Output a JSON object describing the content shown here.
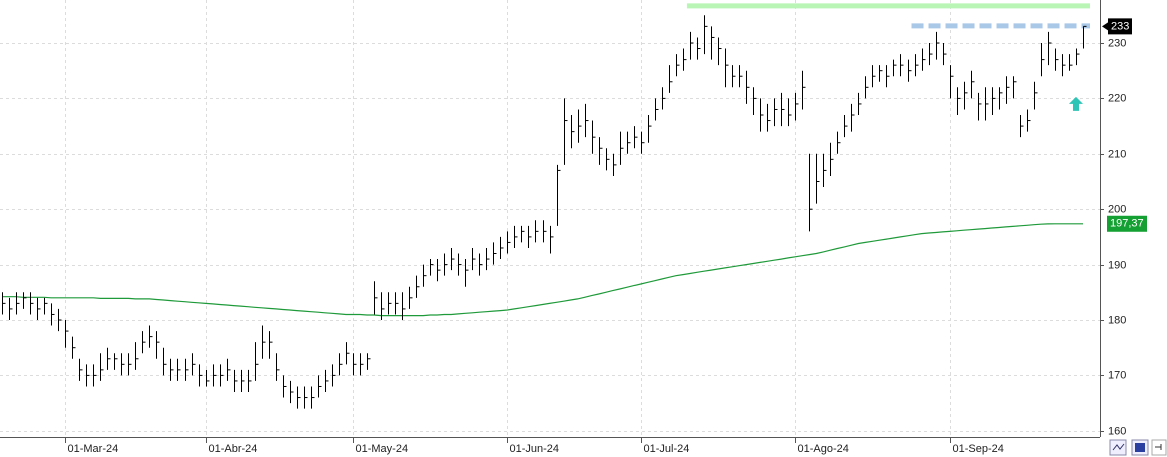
{
  "chart_data": {
    "type": "ohlc",
    "ylim": [
      158.88,
      237.76
    ],
    "yticks": [
      160,
      170,
      180,
      190,
      200,
      210,
      220,
      230
    ],
    "xticks": [
      {
        "value": 9,
        "label": "01-Mar-24"
      },
      {
        "value": 29,
        "label": "01-Abr-24"
      },
      {
        "value": 50,
        "label": "01-May-24"
      },
      {
        "value": 72,
        "label": "01-Jun-24"
      },
      {
        "value": 91,
        "label": "01-Jul-24"
      },
      {
        "value": 113,
        "label": "01-Ago-24"
      },
      {
        "value": 135,
        "label": "01-Sep-24"
      }
    ],
    "grid": true,
    "bar_color": "#000000",
    "high": [
      185,
      184,
      185,
      185,
      185,
      184,
      184,
      183,
      182,
      180,
      177,
      173,
      172,
      172,
      174,
      175,
      174,
      174,
      174,
      176,
      178,
      179,
      178,
      175,
      173,
      173,
      173,
      174,
      172,
      171,
      172,
      172,
      173,
      171,
      171,
      171,
      176,
      179,
      178,
      174,
      170,
      169,
      168,
      168,
      168,
      170,
      171,
      172,
      174,
      176,
      174,
      174,
      174,
      187,
      185,
      185,
      185,
      185,
      186,
      188,
      190,
      191,
      191,
      192,
      193,
      192,
      191,
      193,
      192,
      193,
      194,
      195,
      196,
      197,
      197,
      197,
      198,
      198,
      197,
      208,
      220,
      217,
      218,
      219,
      216,
      213,
      211,
      210,
      214,
      214,
      215,
      214,
      217,
      220,
      222,
      226,
      228,
      229,
      232,
      231,
      235,
      233,
      231,
      229,
      226,
      226,
      225,
      222,
      220,
      219,
      220,
      221,
      220,
      221,
      225,
      210,
      210,
      210,
      212,
      214,
      217,
      219,
      221,
      224,
      226,
      226,
      226,
      227,
      228,
      227,
      228,
      229,
      230,
      232,
      230,
      226,
      222,
      223,
      225,
      221,
      222,
      222,
      222,
      224,
      224,
      217,
      218,
      223,
      230,
      232,
      229,
      228,
      228,
      229,
      233
    ],
    "low": [
      181,
      180,
      181,
      182,
      181,
      180,
      181,
      179,
      178,
      175,
      173,
      169,
      168,
      168,
      169,
      171,
      171,
      170,
      170,
      171,
      174,
      175,
      173,
      170,
      169,
      169,
      169,
      170,
      168,
      168,
      168,
      168,
      169,
      167,
      167,
      167,
      169,
      173,
      173,
      169,
      166,
      165,
      164,
      164,
      164,
      166,
      167,
      168,
      170,
      172,
      170,
      170,
      171,
      181,
      180,
      181,
      181,
      180,
      182,
      184,
      186,
      188,
      187,
      188,
      189,
      188,
      186,
      189,
      188,
      189,
      190,
      191,
      192,
      193,
      194,
      193,
      194,
      194,
      192,
      197,
      208,
      211,
      212,
      213,
      210,
      208,
      207,
      206,
      208,
      210,
      211,
      210,
      212,
      216,
      218,
      221,
      224,
      225,
      227,
      227,
      228,
      227,
      226,
      222,
      222,
      222,
      219,
      217,
      214,
      214,
      215,
      215,
      215,
      216,
      218,
      196,
      201,
      204,
      206,
      210,
      213,
      214,
      217,
      220,
      222,
      223,
      222,
      224,
      224,
      223,
      224,
      225,
      226,
      227,
      226,
      220,
      217,
      218,
      220,
      216,
      216,
      217,
      218,
      219,
      220,
      213,
      214,
      218,
      224,
      226,
      225,
      224,
      225,
      226,
      229
    ],
    "close": [
      183,
      182,
      183,
      184,
      183,
      182,
      183,
      181,
      180,
      178,
      175,
      171,
      170,
      170,
      171,
      173,
      173,
      172,
      172,
      173,
      176,
      177,
      176,
      172,
      171,
      171,
      171,
      172,
      170,
      169,
      170,
      170,
      171,
      169,
      169,
      169,
      172,
      176,
      176,
      171,
      168,
      167,
      166,
      166,
      166,
      168,
      169,
      170,
      172,
      174,
      172,
      172,
      173,
      184,
      182,
      183,
      183,
      182,
      184,
      186,
      188,
      190,
      189,
      190,
      191,
      190,
      189,
      191,
      190,
      191,
      192,
      193,
      194,
      195,
      196,
      195,
      196,
      196,
      195,
      207,
      216,
      214,
      215,
      216,
      213,
      211,
      209,
      208,
      211,
      212,
      213,
      212,
      215,
      218,
      220,
      223,
      226,
      227,
      230,
      229,
      233,
      231,
      229,
      226,
      224,
      224,
      222,
      220,
      217,
      216,
      218,
      218,
      217,
      219,
      222,
      200,
      205,
      207,
      209,
      212,
      215,
      217,
      219,
      222,
      224,
      225,
      224,
      226,
      226,
      225,
      226,
      227,
      228,
      230,
      228,
      224,
      220,
      221,
      223,
      219,
      219,
      220,
      221,
      222,
      223,
      215,
      216,
      221,
      227,
      230,
      227,
      226,
      226,
      228,
      233
    ],
    "ma": {
      "color": "#1f9a3a",
      "label_color": "#14a032",
      "last_value_label": "197,37",
      "values": [
        184.2,
        184.2,
        184.2,
        184.1,
        184.1,
        184.1,
        184.1,
        184.0,
        184.0,
        184.0,
        184.0,
        184.0,
        184.0,
        184.0,
        183.9,
        183.9,
        183.9,
        183.9,
        183.9,
        183.8,
        183.8,
        183.8,
        183.7,
        183.6,
        183.5,
        183.4,
        183.3,
        183.2,
        183.1,
        183.0,
        182.9,
        182.8,
        182.7,
        182.6,
        182.5,
        182.4,
        182.3,
        182.2,
        182.1,
        182.0,
        181.9,
        181.8,
        181.7,
        181.6,
        181.5,
        181.4,
        181.3,
        181.2,
        181.1,
        181.0,
        181.0,
        181.0,
        180.9,
        180.9,
        180.8,
        180.8,
        180.8,
        180.8,
        180.8,
        180.8,
        180.8,
        180.9,
        180.9,
        181.0,
        181.0,
        181.1,
        181.2,
        181.3,
        181.4,
        181.5,
        181.6,
        181.7,
        181.8,
        182.0,
        182.2,
        182.4,
        182.6,
        182.8,
        183.0,
        183.2,
        183.4,
        183.6,
        183.8,
        184.1,
        184.4,
        184.7,
        185.0,
        185.3,
        185.6,
        185.9,
        186.2,
        186.5,
        186.8,
        187.1,
        187.4,
        187.7,
        188.0,
        188.2,
        188.4,
        188.6,
        188.8,
        189.0,
        189.2,
        189.4,
        189.6,
        189.8,
        190.0,
        190.2,
        190.4,
        190.6,
        190.8,
        191.0,
        191.2,
        191.4,
        191.6,
        191.8,
        192.0,
        192.3,
        192.6,
        192.9,
        193.2,
        193.5,
        193.8,
        194.0,
        194.2,
        194.4,
        194.6,
        194.8,
        195.0,
        195.2,
        195.4,
        195.6,
        195.7,
        195.8,
        195.9,
        196.0,
        196.1,
        196.2,
        196.3,
        196.4,
        196.5,
        196.6,
        196.7,
        196.8,
        196.9,
        197.0,
        197.1,
        197.2,
        197.3,
        197.35,
        197.36,
        197.36,
        197.37,
        197.37,
        197.37
      ]
    },
    "ref_lines": [
      {
        "value": 236.7,
        "start": 98,
        "color": "#b9f5b4",
        "dashed": false
      },
      {
        "value": 233.1,
        "start": 130,
        "color": "#a9c8e8",
        "dashed": true
      }
    ],
    "signal": {
      "index": 153,
      "value": 219,
      "color": "#2ec4b6"
    }
  }
}
